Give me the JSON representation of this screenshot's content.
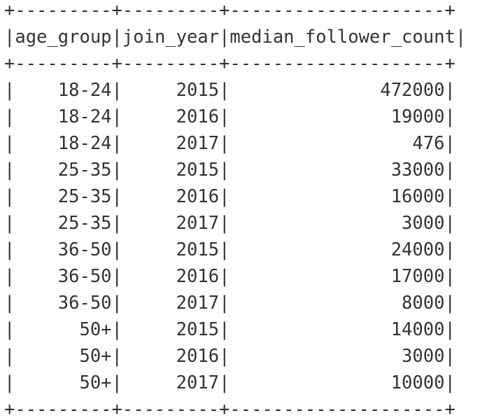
{
  "border": "+---------+---------+--------------------+",
  "header": {
    "columns": [
      {
        "name": "age_group",
        "width": 9,
        "align": "left"
      },
      {
        "name": "join_year",
        "width": 9,
        "align": "left"
      },
      {
        "name": "median_follower_count",
        "width": 20,
        "align": "left"
      }
    ]
  },
  "rows": [
    [
      "18-24",
      "2015",
      "472000"
    ],
    [
      "18-24",
      "2016",
      "19000"
    ],
    [
      "18-24",
      "2017",
      "476"
    ],
    [
      "25-35",
      "2015",
      "33000"
    ],
    [
      "25-35",
      "2016",
      "16000"
    ],
    [
      "25-35",
      "2017",
      "3000"
    ],
    [
      "36-50",
      "2015",
      "24000"
    ],
    [
      "36-50",
      "2016",
      "17000"
    ],
    [
      "36-50",
      "2017",
      "8000"
    ],
    [
      "50+",
      "2015",
      "14000"
    ],
    [
      "50+",
      "2016",
      "3000"
    ],
    [
      "50+",
      "2017",
      "10000"
    ]
  ]
}
